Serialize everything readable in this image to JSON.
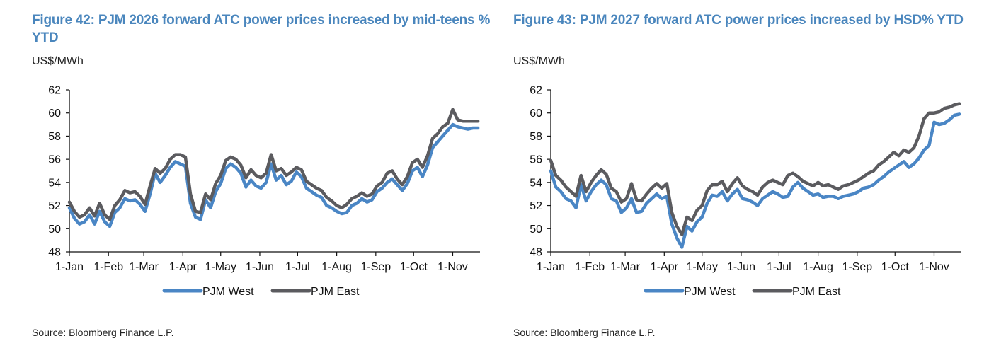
{
  "chart_data": [
    {
      "type": "line",
      "title": "Figure 42: PJM 2026 forward ATC power prices increased by mid-teens % YTD",
      "ylabel": "US$/MWh",
      "xlabel": "",
      "ylim": [
        48,
        62
      ],
      "yticks": [
        "48",
        "50",
        "52",
        "54",
        "56",
        "58",
        "60",
        "62"
      ],
      "xticks": [
        "1-Jan",
        "1-Feb",
        "1-Mar",
        "1-Apr",
        "1-May",
        "1-Jun",
        "1-Jul",
        "1-Aug",
        "1-Sep",
        "1-Oct",
        "1-Nov"
      ],
      "xtick_days": [
        0,
        31,
        59,
        90,
        120,
        151,
        181,
        212,
        243,
        273,
        304
      ],
      "x_max_day": 324,
      "grid": false,
      "legend": "bottom",
      "x_days": [
        0,
        4,
        8,
        12,
        16,
        20,
        24,
        28,
        32,
        36,
        40,
        44,
        48,
        52,
        56,
        60,
        64,
        68,
        72,
        76,
        80,
        84,
        88,
        92,
        96,
        100,
        104,
        108,
        112,
        116,
        120,
        124,
        128,
        132,
        136,
        140,
        144,
        148,
        152,
        156,
        160,
        164,
        168,
        172,
        176,
        180,
        184,
        188,
        192,
        196,
        200,
        204,
        208,
        212,
        216,
        220,
        224,
        228,
        232,
        236,
        240,
        244,
        248,
        252,
        256,
        260,
        264,
        268,
        272,
        276,
        280,
        284,
        288,
        292,
        296,
        300,
        304,
        308,
        312,
        316,
        320,
        324
      ],
      "series": [
        {
          "name": "PJM West",
          "color": "#4a86c5",
          "values": [
            51.8,
            50.9,
            50.4,
            50.6,
            51.2,
            50.4,
            51.5,
            50.6,
            50.2,
            51.4,
            51.8,
            52.6,
            52.4,
            52.5,
            52.1,
            51.5,
            53.0,
            54.8,
            54.0,
            54.6,
            55.3,
            55.8,
            55.6,
            55.4,
            52.2,
            51.0,
            50.8,
            52.5,
            51.8,
            53.2,
            53.9,
            55.2,
            55.6,
            55.3,
            54.8,
            53.6,
            54.2,
            53.7,
            53.5,
            54.0,
            55.6,
            54.2,
            54.6,
            53.8,
            54.1,
            54.9,
            54.5,
            53.5,
            53.2,
            52.9,
            52.7,
            52.0,
            51.8,
            51.5,
            51.3,
            51.4,
            52.0,
            52.2,
            52.6,
            52.3,
            52.5,
            53.2,
            53.5,
            54.0,
            54.3,
            53.8,
            53.3,
            53.9,
            55.0,
            55.3,
            54.5,
            55.5,
            57.0,
            57.5,
            58.0,
            58.5,
            59.0,
            58.8,
            58.7,
            58.6,
            58.7,
            58.7
          ]
        },
        {
          "name": "PJM East",
          "color": "#5b5b5f",
          "values": [
            52.3,
            51.5,
            51.0,
            51.2,
            51.8,
            51.1,
            52.2,
            51.2,
            50.8,
            52.0,
            52.5,
            53.3,
            53.1,
            53.2,
            52.8,
            52.1,
            53.7,
            55.2,
            54.8,
            55.2,
            56.0,
            56.4,
            56.4,
            56.2,
            53.0,
            51.5,
            51.4,
            53.0,
            52.5,
            53.9,
            54.6,
            55.9,
            56.2,
            56.0,
            55.5,
            54.4,
            55.1,
            54.6,
            54.4,
            54.8,
            56.4,
            55.0,
            55.2,
            54.6,
            54.9,
            55.3,
            55.1,
            54.1,
            53.8,
            53.5,
            53.3,
            52.7,
            52.4,
            52.0,
            51.8,
            52.1,
            52.6,
            52.8,
            53.1,
            52.8,
            53.0,
            53.7,
            54.0,
            54.8,
            55.0,
            54.3,
            53.8,
            54.5,
            55.7,
            56.0,
            55.3,
            56.3,
            57.8,
            58.2,
            58.8,
            59.1,
            60.3,
            59.4,
            59.3,
            59.3,
            59.3,
            59.3
          ]
        }
      ],
      "source": "Source: Bloomberg Finance L.P."
    },
    {
      "type": "line",
      "title": "Figure 43: PJM 2027 forward ATC power prices increased by HSD% YTD",
      "ylabel": "US$/MWh",
      "xlabel": "",
      "ylim": [
        48,
        62
      ],
      "yticks": [
        "48",
        "50",
        "52",
        "54",
        "56",
        "58",
        "60",
        "62"
      ],
      "xticks": [
        "1-Jan",
        "1-Feb",
        "1-Mar",
        "1-Apr",
        "1-May",
        "1-Jun",
        "1-Jul",
        "1-Aug",
        "1-Sep",
        "1-Oct",
        "1-Nov"
      ],
      "xtick_days": [
        0,
        31,
        59,
        90,
        120,
        151,
        181,
        212,
        243,
        273,
        304
      ],
      "x_max_day": 324,
      "grid": false,
      "legend": "bottom",
      "x_days": [
        0,
        4,
        8,
        12,
        16,
        20,
        24,
        28,
        32,
        36,
        40,
        44,
        48,
        52,
        56,
        60,
        64,
        68,
        72,
        76,
        80,
        84,
        88,
        92,
        96,
        100,
        104,
        108,
        112,
        116,
        120,
        124,
        128,
        132,
        136,
        140,
        144,
        148,
        152,
        156,
        160,
        164,
        168,
        172,
        176,
        180,
        184,
        188,
        192,
        196,
        200,
        204,
        208,
        212,
        216,
        220,
        224,
        228,
        232,
        236,
        240,
        244,
        248,
        252,
        256,
        260,
        264,
        268,
        272,
        276,
        280,
        284,
        288,
        292,
        296,
        300,
        304,
        308,
        312,
        316,
        320,
        324
      ],
      "series": [
        {
          "name": "PJM West",
          "color": "#4a86c5",
          "values": [
            55.0,
            53.6,
            53.2,
            52.6,
            52.4,
            51.8,
            53.8,
            52.4,
            53.2,
            53.8,
            54.2,
            53.8,
            52.6,
            52.4,
            51.4,
            51.8,
            52.6,
            51.4,
            51.5,
            52.2,
            52.6,
            53.0,
            52.6,
            52.8,
            50.4,
            49.2,
            48.4,
            50.2,
            49.8,
            50.6,
            51.0,
            52.2,
            52.9,
            52.8,
            53.2,
            52.4,
            53.0,
            53.4,
            52.6,
            52.5,
            52.3,
            52.0,
            52.6,
            52.9,
            53.2,
            53.0,
            52.7,
            52.8,
            53.6,
            54.0,
            53.5,
            53.2,
            52.9,
            53.0,
            52.7,
            52.8,
            52.8,
            52.6,
            52.8,
            52.9,
            53.0,
            53.2,
            53.5,
            53.6,
            53.8,
            54.2,
            54.5,
            54.9,
            55.2,
            55.5,
            55.8,
            55.3,
            55.6,
            56.1,
            56.8,
            57.2,
            59.2,
            59.0,
            59.1,
            59.4,
            59.8,
            59.9
          ]
        },
        {
          "name": "PJM East",
          "color": "#5b5b5f",
          "values": [
            55.9,
            54.6,
            54.2,
            53.6,
            53.2,
            52.8,
            54.6,
            53.2,
            54.0,
            54.6,
            55.1,
            54.7,
            53.5,
            53.2,
            52.3,
            52.6,
            53.9,
            52.5,
            52.4,
            53.0,
            53.5,
            53.9,
            53.5,
            53.9,
            51.4,
            50.2,
            49.5,
            51.0,
            50.7,
            51.6,
            52.0,
            53.3,
            53.8,
            53.8,
            54.1,
            53.2,
            53.9,
            54.4,
            53.7,
            53.4,
            53.2,
            52.9,
            53.6,
            54.0,
            54.2,
            54.0,
            53.8,
            54.6,
            54.8,
            54.5,
            54.1,
            53.9,
            53.7,
            54.0,
            53.7,
            53.8,
            53.6,
            53.4,
            53.7,
            53.8,
            54.0,
            54.2,
            54.5,
            54.8,
            55.0,
            55.5,
            55.8,
            56.2,
            56.6,
            56.3,
            56.8,
            56.6,
            57.0,
            58.0,
            59.5,
            60.0,
            60.0,
            60.1,
            60.4,
            60.5,
            60.7,
            60.8
          ]
        }
      ],
      "source": "Source: Bloomberg Finance L.P."
    }
  ]
}
